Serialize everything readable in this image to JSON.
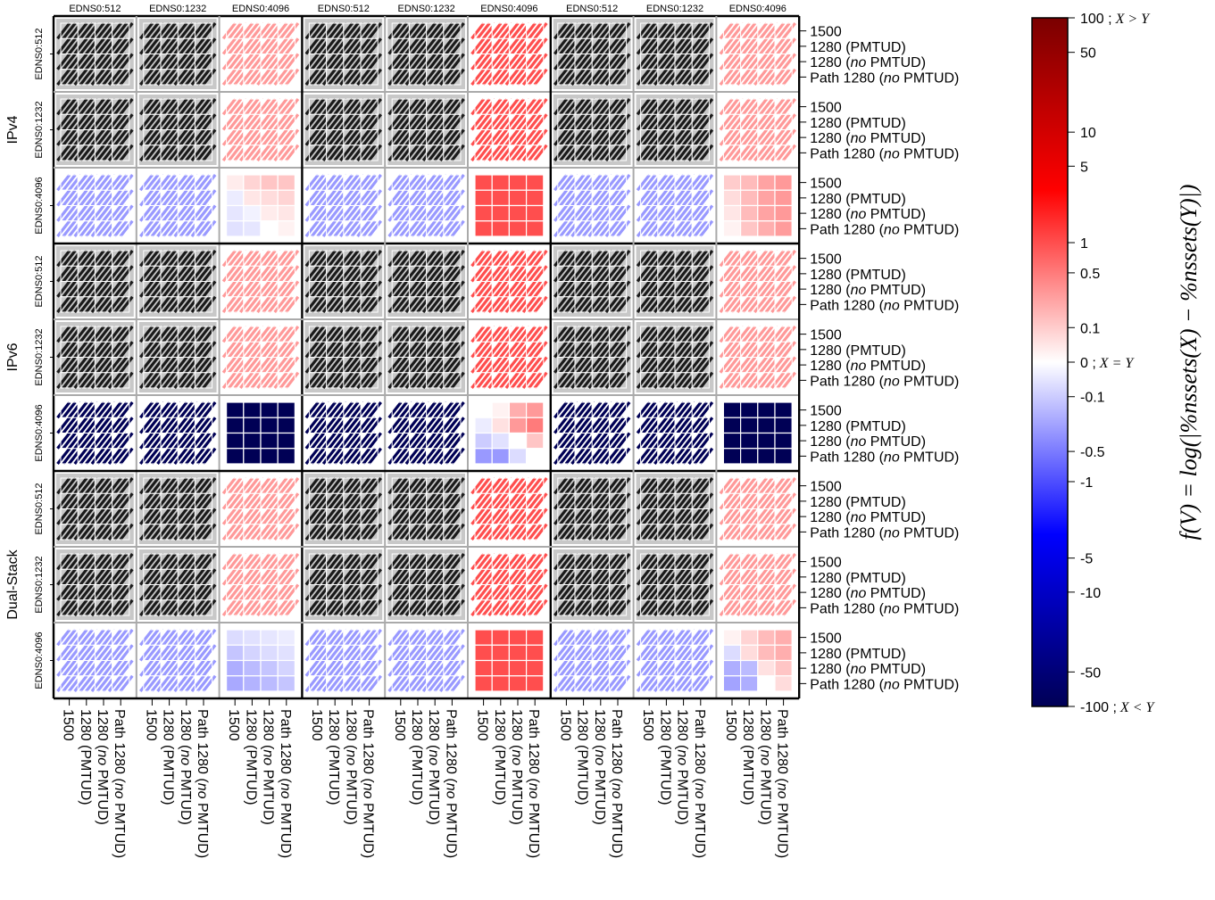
{
  "chart_data": {
    "type": "heatmap",
    "row_groups": [
      "IPv4",
      "IPv6",
      "Dual-Stack"
    ],
    "edns_labels": [
      "EDNS0:512",
      "EDNS0:1232",
      "EDNS0:4096"
    ],
    "mtu_labels": [
      "1500",
      "1280 (PMTUD)",
      "1280 (no PMTUD)",
      "Path 1280 (no PMTUD)"
    ],
    "mtu_labels_rich": [
      [
        {
          "t": "1500"
        }
      ],
      [
        {
          "t": "1280 (PMTUD)"
        }
      ],
      [
        {
          "t": "1280 ("
        },
        {
          "t": "no",
          "i": true
        },
        {
          "t": " PMTUD)"
        }
      ],
      [
        {
          "t": "Path 1280 ("
        },
        {
          "t": "no",
          "i": true
        },
        {
          "t": " PMTUD)"
        }
      ]
    ],
    "hatch_legend": "hatched = not applicable / fully hatched cells shown as pattern",
    "colorbar": {
      "label": "f(V) = log(|%nssets(X) − %nssets(Y)|)",
      "ticks": [
        {
          "v": 100,
          "label": "100 ;",
          "suffix": "X > Y"
        },
        {
          "v": 50,
          "label": "50"
        },
        {
          "v": 10,
          "label": "10"
        },
        {
          "v": 5,
          "label": "5"
        },
        {
          "v": 1,
          "label": "1"
        },
        {
          "v": 0.5,
          "label": "0.5"
        },
        {
          "v": 0.1,
          "label": "0.1"
        },
        {
          "v": 0,
          "label": "0 ;",
          "suffix": "X = Y"
        },
        {
          "v": -0.1,
          "label": "-0.1"
        },
        {
          "v": -0.5,
          "label": "-0.5"
        },
        {
          "v": -1,
          "label": "-1"
        },
        {
          "v": -5,
          "label": "-5"
        },
        {
          "v": -10,
          "label": "-10"
        },
        {
          "v": -50,
          "label": "-50"
        },
        {
          "v": -100,
          "label": "-100 ;",
          "suffix": "X < Y"
        }
      ],
      "colors": {
        "max": "#7a0000",
        "pos": "#ff0000",
        "zero": "#ffffff",
        "neg": "#0000ff",
        "min": "#000055"
      }
    },
    "blocks": [
      [
        "H",
        "H",
        "P",
        "H",
        "H",
        "R",
        "H",
        "H",
        "P"
      ],
      [
        "H",
        "H",
        "P",
        "H",
        "H",
        "R",
        "H",
        "H",
        "P"
      ],
      [
        "L",
        "L",
        "W1",
        "L",
        "L",
        "RS",
        "L",
        "L",
        "W2"
      ],
      [
        "H",
        "H",
        "P",
        "H",
        "H",
        "R",
        "H",
        "H",
        "P"
      ],
      [
        "H",
        "H",
        "P",
        "H",
        "H",
        "R",
        "H",
        "H",
        "P"
      ],
      [
        "B",
        "B",
        "BS",
        "B",
        "B",
        "M",
        "B",
        "B",
        "BS"
      ],
      [
        "H",
        "H",
        "P",
        "H",
        "H",
        "R",
        "H",
        "H",
        "P"
      ],
      [
        "H",
        "H",
        "P",
        "H",
        "H",
        "R",
        "H",
        "H",
        "P"
      ],
      [
        "L",
        "L",
        "W3",
        "L",
        "L",
        "RS",
        "L",
        "L",
        "W4"
      ]
    ],
    "patterns": {
      "H": {
        "hatch": true,
        "bg": "#c8c8c8",
        "stroke": "#1a1a1a"
      },
      "P": {
        "hatch": true,
        "value": 0.3
      },
      "R": {
        "hatch": true,
        "value": 1
      },
      "L": {
        "hatch": true,
        "value": -0.3
      },
      "B": {
        "hatch": true,
        "value": -100
      },
      "RS": {
        "hatch": false,
        "value": 1
      },
      "BS": {
        "hatch": false,
        "value": -100
      },
      "W1": {
        "hatch": false,
        "grid": [
          [
            0.03,
            0.08,
            0.12,
            0.12
          ],
          [
            -0.03,
            0.04,
            0.06,
            0.08
          ],
          [
            -0.04,
            -0.02,
            0.03,
            0.04
          ],
          [
            -0.05,
            -0.04,
            0.0,
            0.02
          ]
        ]
      },
      "W2": {
        "hatch": false,
        "grid": [
          [
            0.1,
            0.15,
            0.25,
            0.3
          ],
          [
            0.06,
            0.15,
            0.25,
            0.3
          ],
          [
            0.04,
            0.15,
            0.25,
            0.3
          ],
          [
            0.02,
            0.12,
            0.2,
            0.28
          ]
        ]
      },
      "W3": {
        "hatch": false,
        "grid": [
          [
            -0.06,
            -0.05,
            -0.04,
            -0.03
          ],
          [
            -0.12,
            -0.08,
            -0.06,
            -0.05
          ],
          [
            -0.2,
            -0.15,
            -0.12,
            -0.08
          ],
          [
            -0.22,
            -0.18,
            -0.15,
            -0.12
          ]
        ]
      },
      "W4": {
        "hatch": false,
        "grid": [
          [
            0.02,
            0.08,
            0.15,
            0.2
          ],
          [
            -0.06,
            0.06,
            0.15,
            0.2
          ],
          [
            -0.2,
            -0.15,
            0.05,
            0.12
          ],
          [
            -0.25,
            -0.2,
            0.0,
            0.06
          ]
        ]
      },
      "M": {
        "hatch": false,
        "grid": [
          [
            0,
            0.02,
            0.2,
            0.3
          ],
          [
            -0.03,
            0.05,
            0.3,
            0.5
          ],
          [
            -0.1,
            -0.05,
            0,
            0.12
          ],
          [
            -0.3,
            -0.3,
            -0.06,
            0
          ]
        ]
      }
    }
  }
}
